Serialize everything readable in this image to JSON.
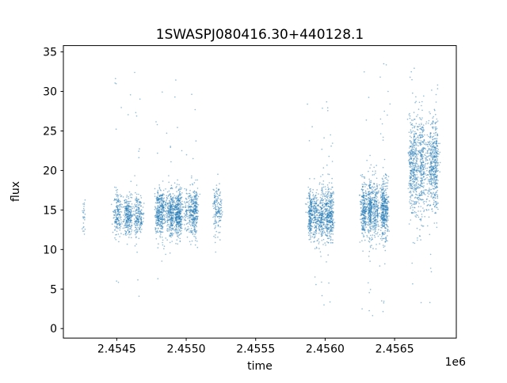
{
  "chart_data": {
    "type": "scatter",
    "title": "1SWASPJ080416.30+440128.1",
    "xlabel": "time",
    "ylabel": "flux",
    "x_offset_label": "1e6",
    "grid": false,
    "legend": null,
    "xlim": [
      2454116,
      2456944
    ],
    "ylim": [
      -1.2,
      35.8
    ],
    "x_ticks": [
      {
        "value": 2454500,
        "label": "2.4545"
      },
      {
        "value": 2455000,
        "label": "2.4550"
      },
      {
        "value": 2455500,
        "label": "2.4555"
      },
      {
        "value": 2456000,
        "label": "2.4560"
      },
      {
        "value": 2456500,
        "label": "2.4565"
      }
    ],
    "y_ticks": [
      {
        "value": 0,
        "label": "0"
      },
      {
        "value": 5,
        "label": "5"
      },
      {
        "value": 10,
        "label": "10"
      },
      {
        "value": 15,
        "label": "15"
      },
      {
        "value": 20,
        "label": "20"
      },
      {
        "value": 25,
        "label": "25"
      },
      {
        "value": 30,
        "label": "30"
      },
      {
        "value": 35,
        "label": "35"
      }
    ],
    "marker_color": "#1f77b4",
    "marker_opacity": 0.5,
    "marker_radius": 0.8,
    "axis_color": "#000000",
    "background_color": "#ffffff",
    "clusters": [
      {
        "x_center": 2454260,
        "x_halfwidth": 14,
        "n_points": 26,
        "columns": 2,
        "flux_mean": 14.8,
        "flux_sigma": 1.5,
        "outlier_fraction": 0.0,
        "outlier_range": [
          12,
          18
        ]
      },
      {
        "x_center": 2454580,
        "x_halfwidth": 112,
        "n_points": 650,
        "columns": 6,
        "flux_mean": 14.3,
        "flux_sigma": 1.25,
        "outlier_fraction": 0.045,
        "outlier_range": [
          4,
          32.5
        ]
      },
      {
        "x_center": 2454930,
        "x_halfwidth": 148,
        "n_points": 1400,
        "columns": 9,
        "flux_mean": 14.7,
        "flux_sigma": 1.5,
        "outlier_fraction": 0.03,
        "outlier_range": [
          5,
          31.5
        ]
      },
      {
        "x_center": 2455220,
        "x_halfwidth": 28,
        "n_points": 160,
        "columns": 2,
        "flux_mean": 15.0,
        "flux_sigma": 1.5,
        "outlier_fraction": 0.0,
        "outlier_range": [
          12,
          18.5
        ]
      },
      {
        "x_center": 2455970,
        "x_halfwidth": 88,
        "n_points": 950,
        "columns": 6,
        "flux_mean": 14.3,
        "flux_sigma": 1.7,
        "outlier_fraction": 0.035,
        "outlier_range": [
          2,
          31
        ]
      },
      {
        "x_center": 2456350,
        "x_halfwidth": 103,
        "n_points": 1150,
        "columns": 7,
        "flux_mean": 15.0,
        "flux_sigma": 1.9,
        "outlier_fraction": 0.035,
        "outlier_range": [
          1,
          33.5
        ]
      },
      {
        "x_center": 2456710,
        "x_halfwidth": 103,
        "n_points": 1200,
        "columns": 6,
        "flux_mean": 20.6,
        "flux_sigma": 3.0,
        "outlier_fraction": 0.03,
        "outlier_range": [
          2,
          34
        ]
      }
    ]
  }
}
